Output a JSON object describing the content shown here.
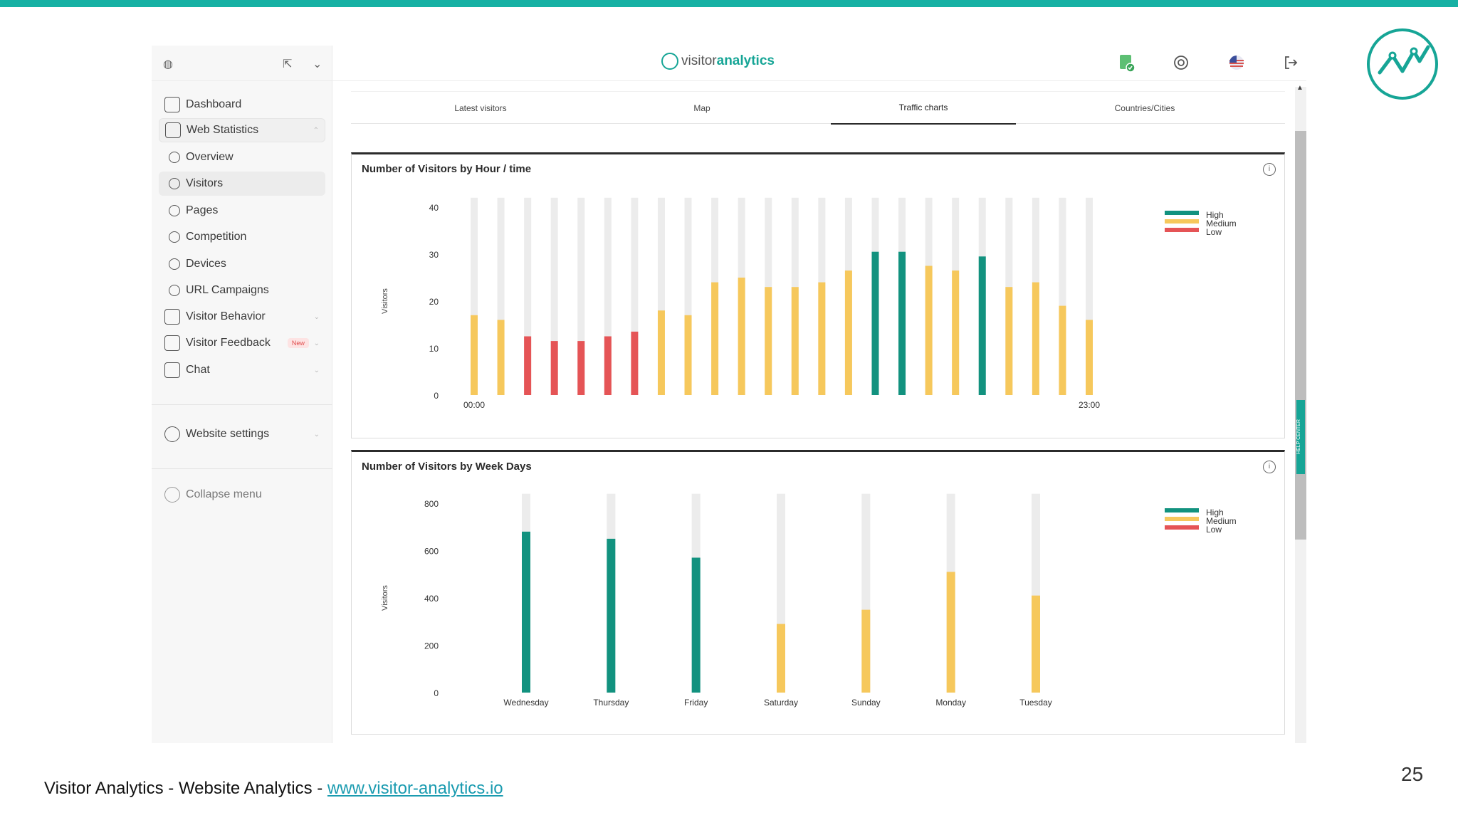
{
  "app": {
    "logo_part1": "visitor",
    "logo_part2": "analytics"
  },
  "sidebar": {
    "items": [
      {
        "label": "Dashboard",
        "icon": "layout-icon"
      },
      {
        "label": "Web Statistics",
        "icon": "bar-chart-icon"
      },
      {
        "label": "Overview",
        "icon": "overview-icon"
      },
      {
        "label": "Visitors",
        "icon": "target-icon"
      },
      {
        "label": "Pages",
        "icon": "pages-icon"
      },
      {
        "label": "Competition",
        "icon": "competition-icon"
      },
      {
        "label": "Devices",
        "icon": "monitor-icon"
      },
      {
        "label": "URL Campaigns",
        "icon": "megaphone-icon"
      },
      {
        "label": "Visitor Behavior",
        "icon": "behavior-icon"
      },
      {
        "label": "Visitor Feedback",
        "icon": "feedback-icon"
      },
      {
        "label": "Chat",
        "icon": "chat-icon"
      }
    ],
    "new_badge": "New",
    "settings_label": "Website settings",
    "collapse_label": "Collapse menu"
  },
  "tabs": [
    {
      "label": "Latest visitors"
    },
    {
      "label": "Map"
    },
    {
      "label": "Traffic charts"
    },
    {
      "label": "Countries/Cities"
    }
  ],
  "help_center": "HELP CENTER",
  "chart_data": [
    {
      "type": "bar",
      "title": "Number of Visitors by Hour / time",
      "ylabel": "Visitors",
      "ylim": [
        0,
        40
      ],
      "yticks": [
        0,
        10,
        20,
        30,
        40
      ],
      "x_labels_shown": [
        "00:00",
        "23:00"
      ],
      "max_value": 42,
      "values": [
        17,
        16,
        12.5,
        11.5,
        11.5,
        12.5,
        13.5,
        18,
        17,
        24,
        25,
        23,
        23,
        24,
        26.5,
        30.5,
        30.5,
        27.5,
        26.5,
        29.5,
        23,
        24,
        19,
        16
      ],
      "levels": [
        "medium",
        "medium",
        "low",
        "low",
        "low",
        "low",
        "low",
        "medium",
        "medium",
        "medium",
        "medium",
        "medium",
        "medium",
        "medium",
        "medium",
        "high",
        "high",
        "medium",
        "medium",
        "high",
        "medium",
        "medium",
        "medium",
        "medium"
      ],
      "legend": [
        "High",
        "Medium",
        "Low"
      ],
      "legend_position": "top-right"
    },
    {
      "type": "bar",
      "title": "Number of Visitors by Week Days",
      "ylabel": "Visitors",
      "ylim": [
        0,
        800
      ],
      "yticks": [
        0,
        200,
        400,
        600,
        800
      ],
      "max_value": 840,
      "categories": [
        "Wednesday",
        "Thursday",
        "Friday",
        "Saturday",
        "Sunday",
        "Monday",
        "Tuesday"
      ],
      "values": [
        680,
        650,
        570,
        290,
        350,
        510,
        410
      ],
      "levels": [
        "high",
        "high",
        "high",
        "medium",
        "medium",
        "medium",
        "medium"
      ],
      "legend": [
        "High",
        "Medium",
        "Low"
      ],
      "legend_position": "top-right"
    }
  ],
  "colors": {
    "high": "#12927f",
    "medium": "#f6c85c",
    "low": "#e55456",
    "bar_bg": "#ececec",
    "brand": "#16b1a4"
  },
  "footer": {
    "text": "Visitor Analytics - Website Analytics  - ",
    "link": "www.visitor-analytics.io"
  },
  "slide_number": "25"
}
